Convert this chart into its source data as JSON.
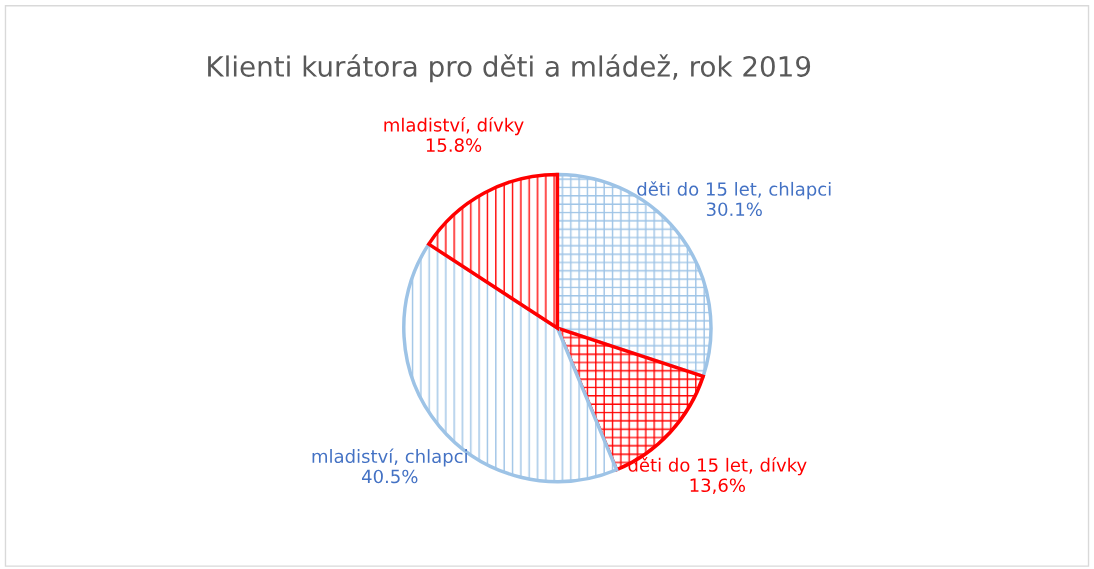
{
  "chart_data": {
    "type": "pie",
    "title": "Klienti kurátora pro děti a mládež, rok 2019",
    "categories": [
      "děti do 15 let, chlapci",
      "děti do 15 let, dívky",
      "mladiství, chlapci",
      "mladiství, dívky"
    ],
    "values": [
      30.1,
      13.6,
      40.5,
      15.8
    ],
    "colors": [
      "#9dc3e6",
      "#ff0000",
      "#9dc3e6",
      "#ff0000"
    ],
    "value_labels": [
      "30.1%",
      "13,6%",
      "40.5%",
      "15.8%"
    ]
  }
}
